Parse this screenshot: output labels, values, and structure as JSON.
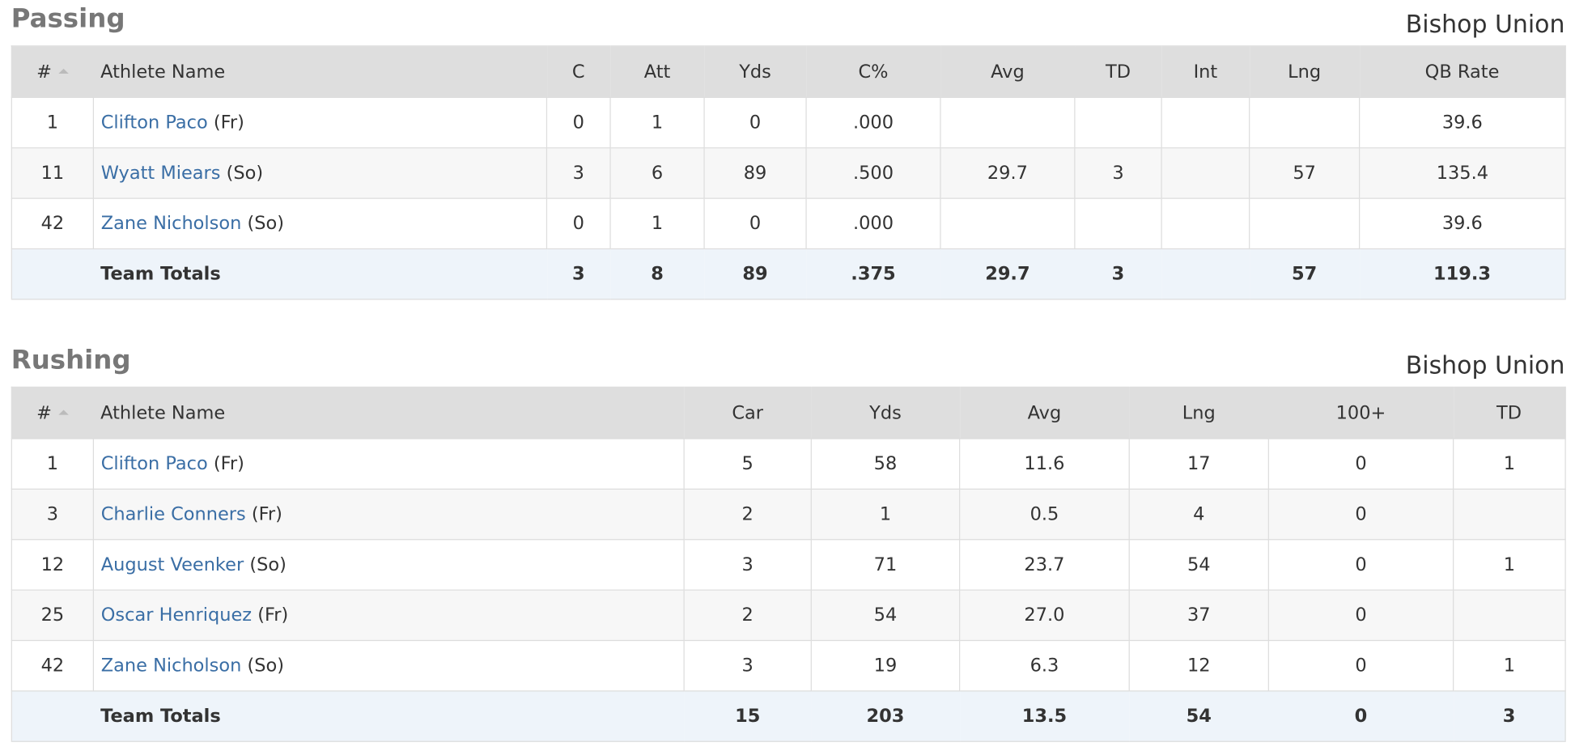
{
  "sections": [
    {
      "title": "Passing",
      "team": "Bishop Union",
      "columns": [
        "#",
        "Athlete Name",
        "C",
        "Att",
        "Yds",
        "C%",
        "Avg",
        "TD",
        "Int",
        "Lng",
        "QB Rate"
      ],
      "rows": [
        {
          "number": "1",
          "name": "Clifton Paco",
          "year": "(Fr)",
          "stats": [
            "0",
            "1",
            "0",
            ".000",
            null,
            null,
            null,
            null,
            "39.6"
          ]
        },
        {
          "number": "11",
          "name": "Wyatt Miears",
          "year": "(So)",
          "stats": [
            "3",
            "6",
            "89",
            ".500",
            "29.7",
            "3",
            null,
            "57",
            "135.4"
          ]
        },
        {
          "number": "42",
          "name": "Zane Nicholson",
          "year": "(So)",
          "stats": [
            "0",
            "1",
            "0",
            ".000",
            null,
            null,
            null,
            null,
            "39.6"
          ]
        }
      ],
      "totals": {
        "label": "Team Totals",
        "stats": [
          "3",
          "8",
          "89",
          ".375",
          "29.7",
          "3",
          null,
          "57",
          "119.3"
        ]
      }
    },
    {
      "title": "Rushing",
      "team": "Bishop Union",
      "columns": [
        "#",
        "Athlete Name",
        "Car",
        "Yds",
        "Avg",
        "Lng",
        "100+",
        "TD"
      ],
      "rows": [
        {
          "number": "1",
          "name": "Clifton Paco",
          "year": "(Fr)",
          "stats": [
            "5",
            "58",
            "11.6",
            "17",
            "0",
            "1"
          ]
        },
        {
          "number": "3",
          "name": "Charlie Conners",
          "year": "(Fr)",
          "stats": [
            "2",
            "1",
            "0.5",
            "4",
            "0",
            null
          ]
        },
        {
          "number": "12",
          "name": "August Veenker",
          "year": "(So)",
          "stats": [
            "3",
            "71",
            "23.7",
            "54",
            "0",
            "1"
          ]
        },
        {
          "number": "25",
          "name": "Oscar Henriquez",
          "year": "(Fr)",
          "stats": [
            "2",
            "54",
            "27.0",
            "37",
            "0",
            null
          ]
        },
        {
          "number": "42",
          "name": "Zane Nicholson",
          "year": "(So)",
          "stats": [
            "3",
            "19",
            "6.3",
            "12",
            "0",
            "1"
          ]
        }
      ],
      "totals": {
        "label": "Team Totals",
        "stats": [
          "15",
          "203",
          "13.5",
          "54",
          "0",
          "3"
        ]
      }
    }
  ]
}
